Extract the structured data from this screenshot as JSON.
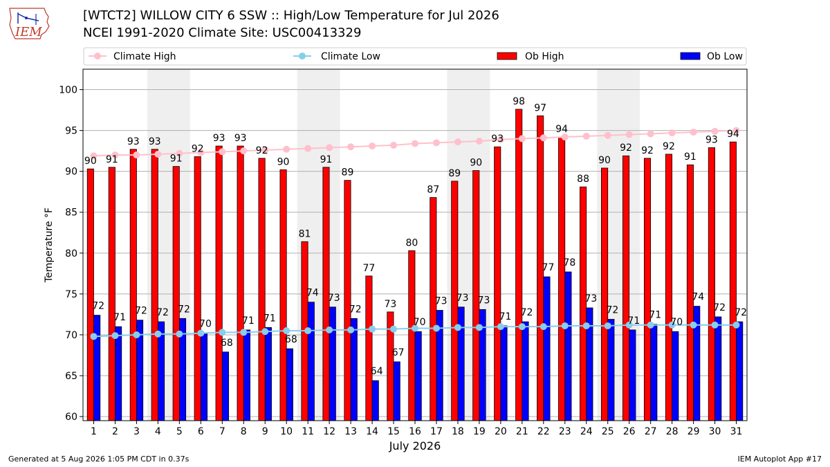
{
  "header": {
    "title_line1": "[WTCT2] WILLOW CITY 6 SSW :: High/Low Temperature for Jul 2026",
    "title_line2": "NCEI 1991-2020 Climate Site: USC00413329",
    "logo_text": "IEM"
  },
  "footer": {
    "generated": "Generated at 5 Aug 2026 1:05 PM CDT in 0.37s",
    "app": "IEM Autoplot App #17"
  },
  "chart_data": {
    "type": "bar",
    "xlabel": "July 2026",
    "ylabel": "Temperature °F",
    "ylim": [
      59.5,
      102.5
    ],
    "yticks": [
      60,
      65,
      70,
      75,
      80,
      85,
      90,
      95,
      100
    ],
    "grid": true,
    "legend_placement": "top",
    "categories": [
      "1",
      "2",
      "3",
      "4",
      "5",
      "6",
      "7",
      "8",
      "9",
      "10",
      "11",
      "12",
      "13",
      "14",
      "15",
      "16",
      "17",
      "18",
      "19",
      "20",
      "21",
      "22",
      "23",
      "24",
      "25",
      "26",
      "27",
      "28",
      "29",
      "30",
      "31"
    ],
    "weekend_days": [
      4,
      5,
      11,
      12,
      18,
      19,
      25,
      26
    ],
    "series": [
      {
        "name": "Ob High",
        "kind": "bar",
        "color": "#ff0000",
        "values": [
          90.3,
          90.5,
          92.7,
          92.7,
          90.6,
          91.8,
          93.1,
          93.1,
          91.6,
          90.2,
          81.4,
          90.5,
          88.9,
          77.2,
          72.8,
          80.3,
          86.8,
          88.8,
          90.1,
          93.0,
          97.6,
          96.8,
          94.2,
          88.1,
          90.4,
          91.9,
          91.6,
          92.1,
          90.8,
          92.9,
          93.6
        ],
        "labels": [
          "90",
          "91",
          "93",
          "93",
          "91",
          "92",
          "93",
          "93",
          "92",
          "90",
          "81",
          "91",
          "89",
          "77",
          "73",
          "80",
          "87",
          "89",
          "90",
          "93",
          "98",
          "97",
          "94",
          "88",
          "90",
          "92",
          "92",
          "92",
          "91",
          "93",
          "94"
        ]
      },
      {
        "name": "Ob Low",
        "kind": "bar",
        "color": "#0000ff",
        "values": [
          72.4,
          71.0,
          71.8,
          71.6,
          72.0,
          70.2,
          67.9,
          70.6,
          70.9,
          68.3,
          74.0,
          73.4,
          72.0,
          64.4,
          66.7,
          70.4,
          73.0,
          73.4,
          73.1,
          71.1,
          71.6,
          77.1,
          77.7,
          73.3,
          71.9,
          70.6,
          71.3,
          70.4,
          73.5,
          72.2,
          71.6
        ],
        "labels": [
          "72",
          "71",
          "72",
          "72",
          "72",
          "70",
          "68",
          "71",
          "71",
          "68",
          "74",
          "73",
          "72",
          "64",
          "67",
          "70",
          "73",
          "73",
          "73",
          "71",
          "72",
          "77",
          "78",
          "73",
          "72",
          "71",
          "71",
          "70",
          "74",
          "72",
          "72"
        ]
      },
      {
        "name": "Climate High",
        "kind": "line",
        "color": "#ffc0cb",
        "values": [
          91.9,
          92.0,
          92.0,
          92.1,
          92.2,
          92.3,
          92.4,
          92.5,
          92.6,
          92.7,
          92.8,
          92.9,
          93.0,
          93.1,
          93.2,
          93.4,
          93.5,
          93.6,
          93.7,
          93.9,
          94.0,
          94.1,
          94.2,
          94.3,
          94.4,
          94.5,
          94.6,
          94.7,
          94.8,
          94.9,
          95.0
        ]
      },
      {
        "name": "Climate Low",
        "kind": "line",
        "color": "#87ceeb",
        "values": [
          69.8,
          69.9,
          70.0,
          70.1,
          70.1,
          70.2,
          70.3,
          70.3,
          70.4,
          70.5,
          70.5,
          70.6,
          70.6,
          70.7,
          70.7,
          70.8,
          70.8,
          70.9,
          70.9,
          71.0,
          71.0,
          71.0,
          71.1,
          71.1,
          71.1,
          71.2,
          71.2,
          71.2,
          71.2,
          71.2,
          71.2
        ]
      }
    ]
  }
}
